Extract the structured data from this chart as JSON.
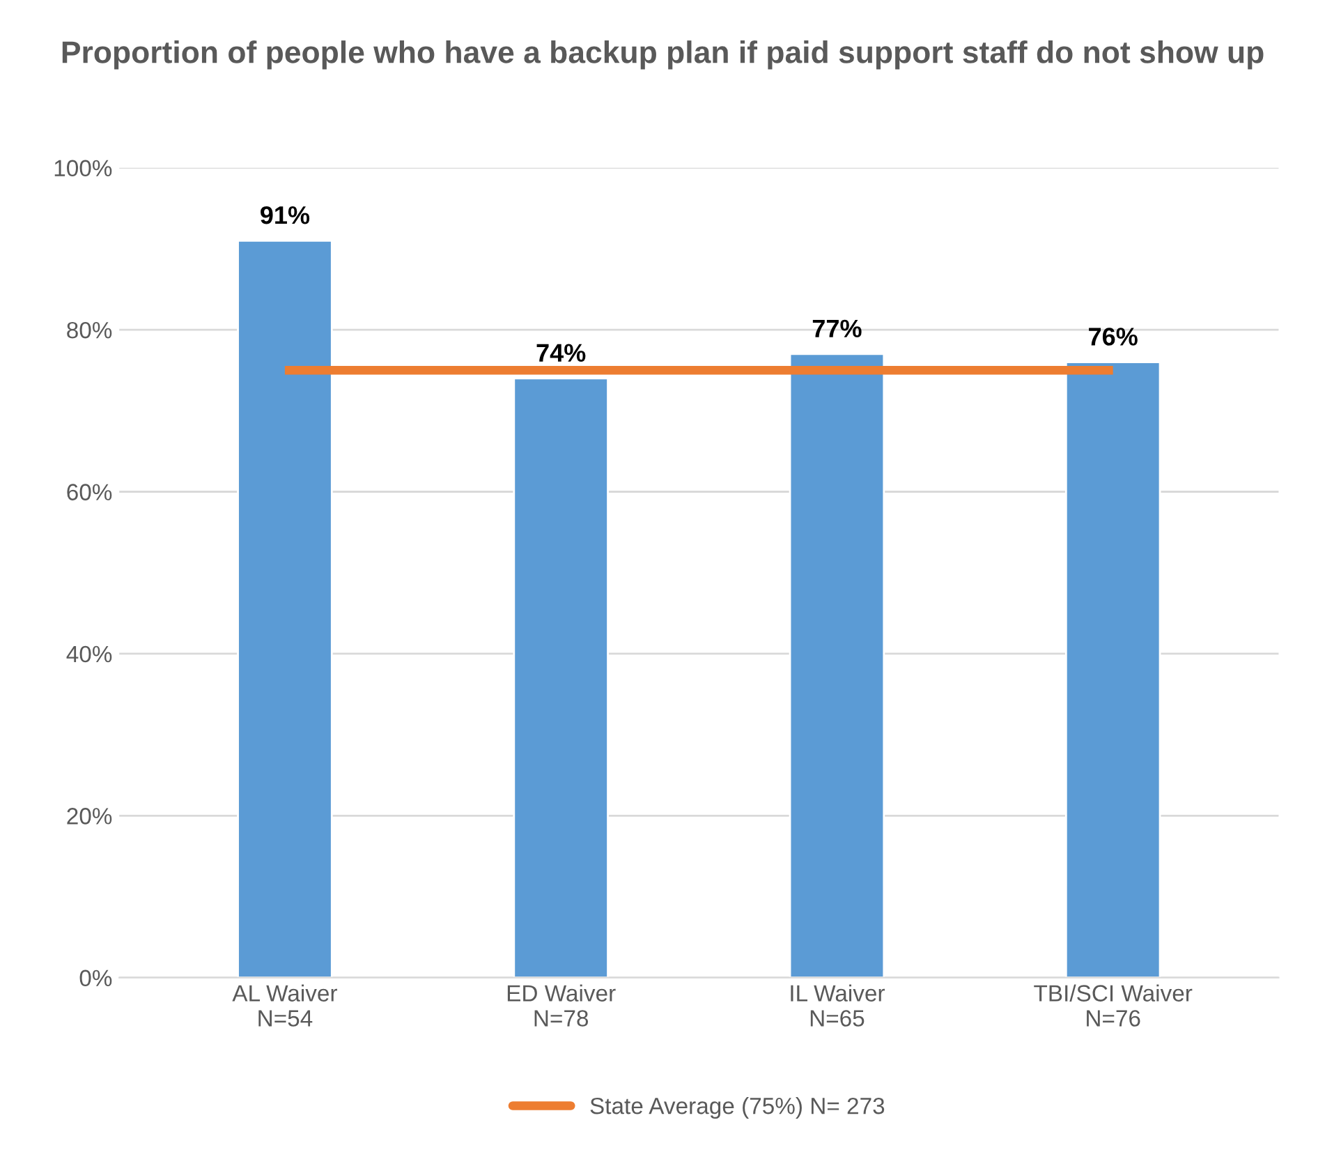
{
  "chart_data": {
    "type": "bar",
    "title": "Proportion of people who have a backup plan if paid support staff do not show up",
    "categories": [
      "AL Waiver\nN=54",
      "ED Waiver\nN=78",
      "IL Waiver\nN=65",
      "TBI/SCI Waiver\nN=76"
    ],
    "series": [
      {
        "color": "#5b9bd5",
        "values": [
          91,
          74,
          77,
          76
        ],
        "value_labels": [
          "91%",
          "74%",
          "77%",
          "76%"
        ]
      },
      {
        "type": "line",
        "name": "State Average (75%) N= 273",
        "color": "#ed7d31",
        "values": [
          75,
          75,
          75,
          75
        ],
        "marker": "none"
      }
    ],
    "ylim": [
      0,
      100
    ],
    "yticks": [
      {
        "value": 0,
        "label": "0%"
      },
      {
        "value": 20,
        "label": "20%"
      },
      {
        "value": 40,
        "label": "40%"
      },
      {
        "value": 60,
        "label": "60%"
      },
      {
        "value": 80,
        "label": "80%"
      },
      {
        "value": 100,
        "label": "100%"
      }
    ],
    "grid": "y",
    "legend": "bottom"
  }
}
